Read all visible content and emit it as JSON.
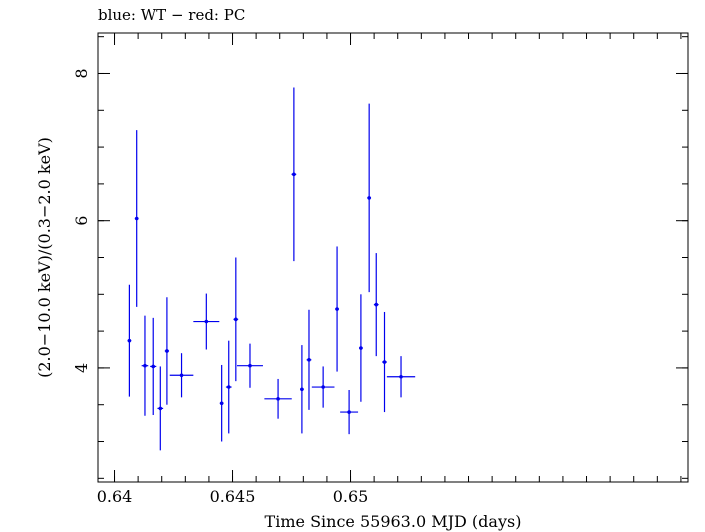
{
  "chart_data": {
    "type": "scatter",
    "title": "blue: WT − red: PC",
    "xlabel": "Time Since 55963.0 MJD (days)",
    "ylabel": "(2.0−10.0 keV)/(0.3−2.0 keV)",
    "xlim": [
      0.6393,
      0.6643
    ],
    "ylim": [
      2.45,
      8.55
    ],
    "x_ticks": [
      {
        "value": 0.64,
        "label": "0.64"
      },
      {
        "value": 0.645,
        "label": "0.645"
      },
      {
        "value": 0.65,
        "label": "0.65"
      }
    ],
    "y_ticks": [
      {
        "value": 4,
        "label": "4"
      },
      {
        "value": 6,
        "label": "6"
      },
      {
        "value": 8,
        "label": "8"
      }
    ],
    "x_minor_step": 0.001,
    "y_minor_step": 0.5,
    "grid": false,
    "series": [
      {
        "name": "WT",
        "color": "#0000ee",
        "points": [
          {
            "x": 0.64063,
            "xerr": 8e-05,
            "y": 4.37,
            "yerr": 0.76
          },
          {
            "x": 0.64094,
            "xerr": 8e-05,
            "y": 6.03,
            "yerr": 1.2
          },
          {
            "x": 0.64129,
            "xerr": 0.00014,
            "y": 4.03,
            "yerr": 0.68
          },
          {
            "x": 0.64164,
            "xerr": 0.00013,
            "y": 4.02,
            "yerr": 0.66
          },
          {
            "x": 0.64194,
            "xerr": 0.00012,
            "y": 3.45,
            "yerr": 0.57
          },
          {
            "x": 0.64222,
            "xerr": 9e-05,
            "y": 4.23,
            "yerr": 0.73
          },
          {
            "x": 0.64284,
            "xerr": 0.0005,
            "y": 3.9,
            "yerr": 0.3
          },
          {
            "x": 0.64389,
            "xerr": 0.00055,
            "y": 4.63,
            "yerr": 0.38
          },
          {
            "x": 0.64454,
            "xerr": 8e-05,
            "y": 3.52,
            "yerr": 0.52
          },
          {
            "x": 0.64484,
            "xerr": 0.00012,
            "y": 3.74,
            "yerr": 0.63
          },
          {
            "x": 0.64514,
            "xerr": 0.0001,
            "y": 4.66,
            "yerr": 0.84
          },
          {
            "x": 0.64574,
            "xerr": 0.00055,
            "y": 4.03,
            "yerr": 0.3
          },
          {
            "x": 0.64693,
            "xerr": 0.00058,
            "y": 3.58,
            "yerr": 0.27
          },
          {
            "x": 0.6476,
            "xerr": 0.0001,
            "y": 6.63,
            "yerr": 1.18
          },
          {
            "x": 0.64794,
            "xerr": 8e-05,
            "y": 3.71,
            "yerr": 0.6
          },
          {
            "x": 0.64824,
            "xerr": 0.0001,
            "y": 4.11,
            "yerr": 0.68
          },
          {
            "x": 0.64884,
            "xerr": 0.00048,
            "y": 3.74,
            "yerr": 0.28
          },
          {
            "x": 0.64943,
            "xerr": 8e-05,
            "y": 4.8,
            "yerr": 0.85
          },
          {
            "x": 0.64994,
            "xerr": 0.00038,
            "y": 3.4,
            "yerr": 0.3
          },
          {
            "x": 0.65044,
            "xerr": 8e-05,
            "y": 4.27,
            "yerr": 0.73
          },
          {
            "x": 0.65079,
            "xerr": 8e-05,
            "y": 6.31,
            "yerr": 1.28
          },
          {
            "x": 0.65109,
            "xerr": 0.0001,
            "y": 4.86,
            "yerr": 0.7
          },
          {
            "x": 0.65144,
            "xerr": 0.0001,
            "y": 4.08,
            "yerr": 0.68
          },
          {
            "x": 0.65214,
            "xerr": 0.0006,
            "y": 3.88,
            "yerr": 0.28
          }
        ]
      }
    ]
  }
}
